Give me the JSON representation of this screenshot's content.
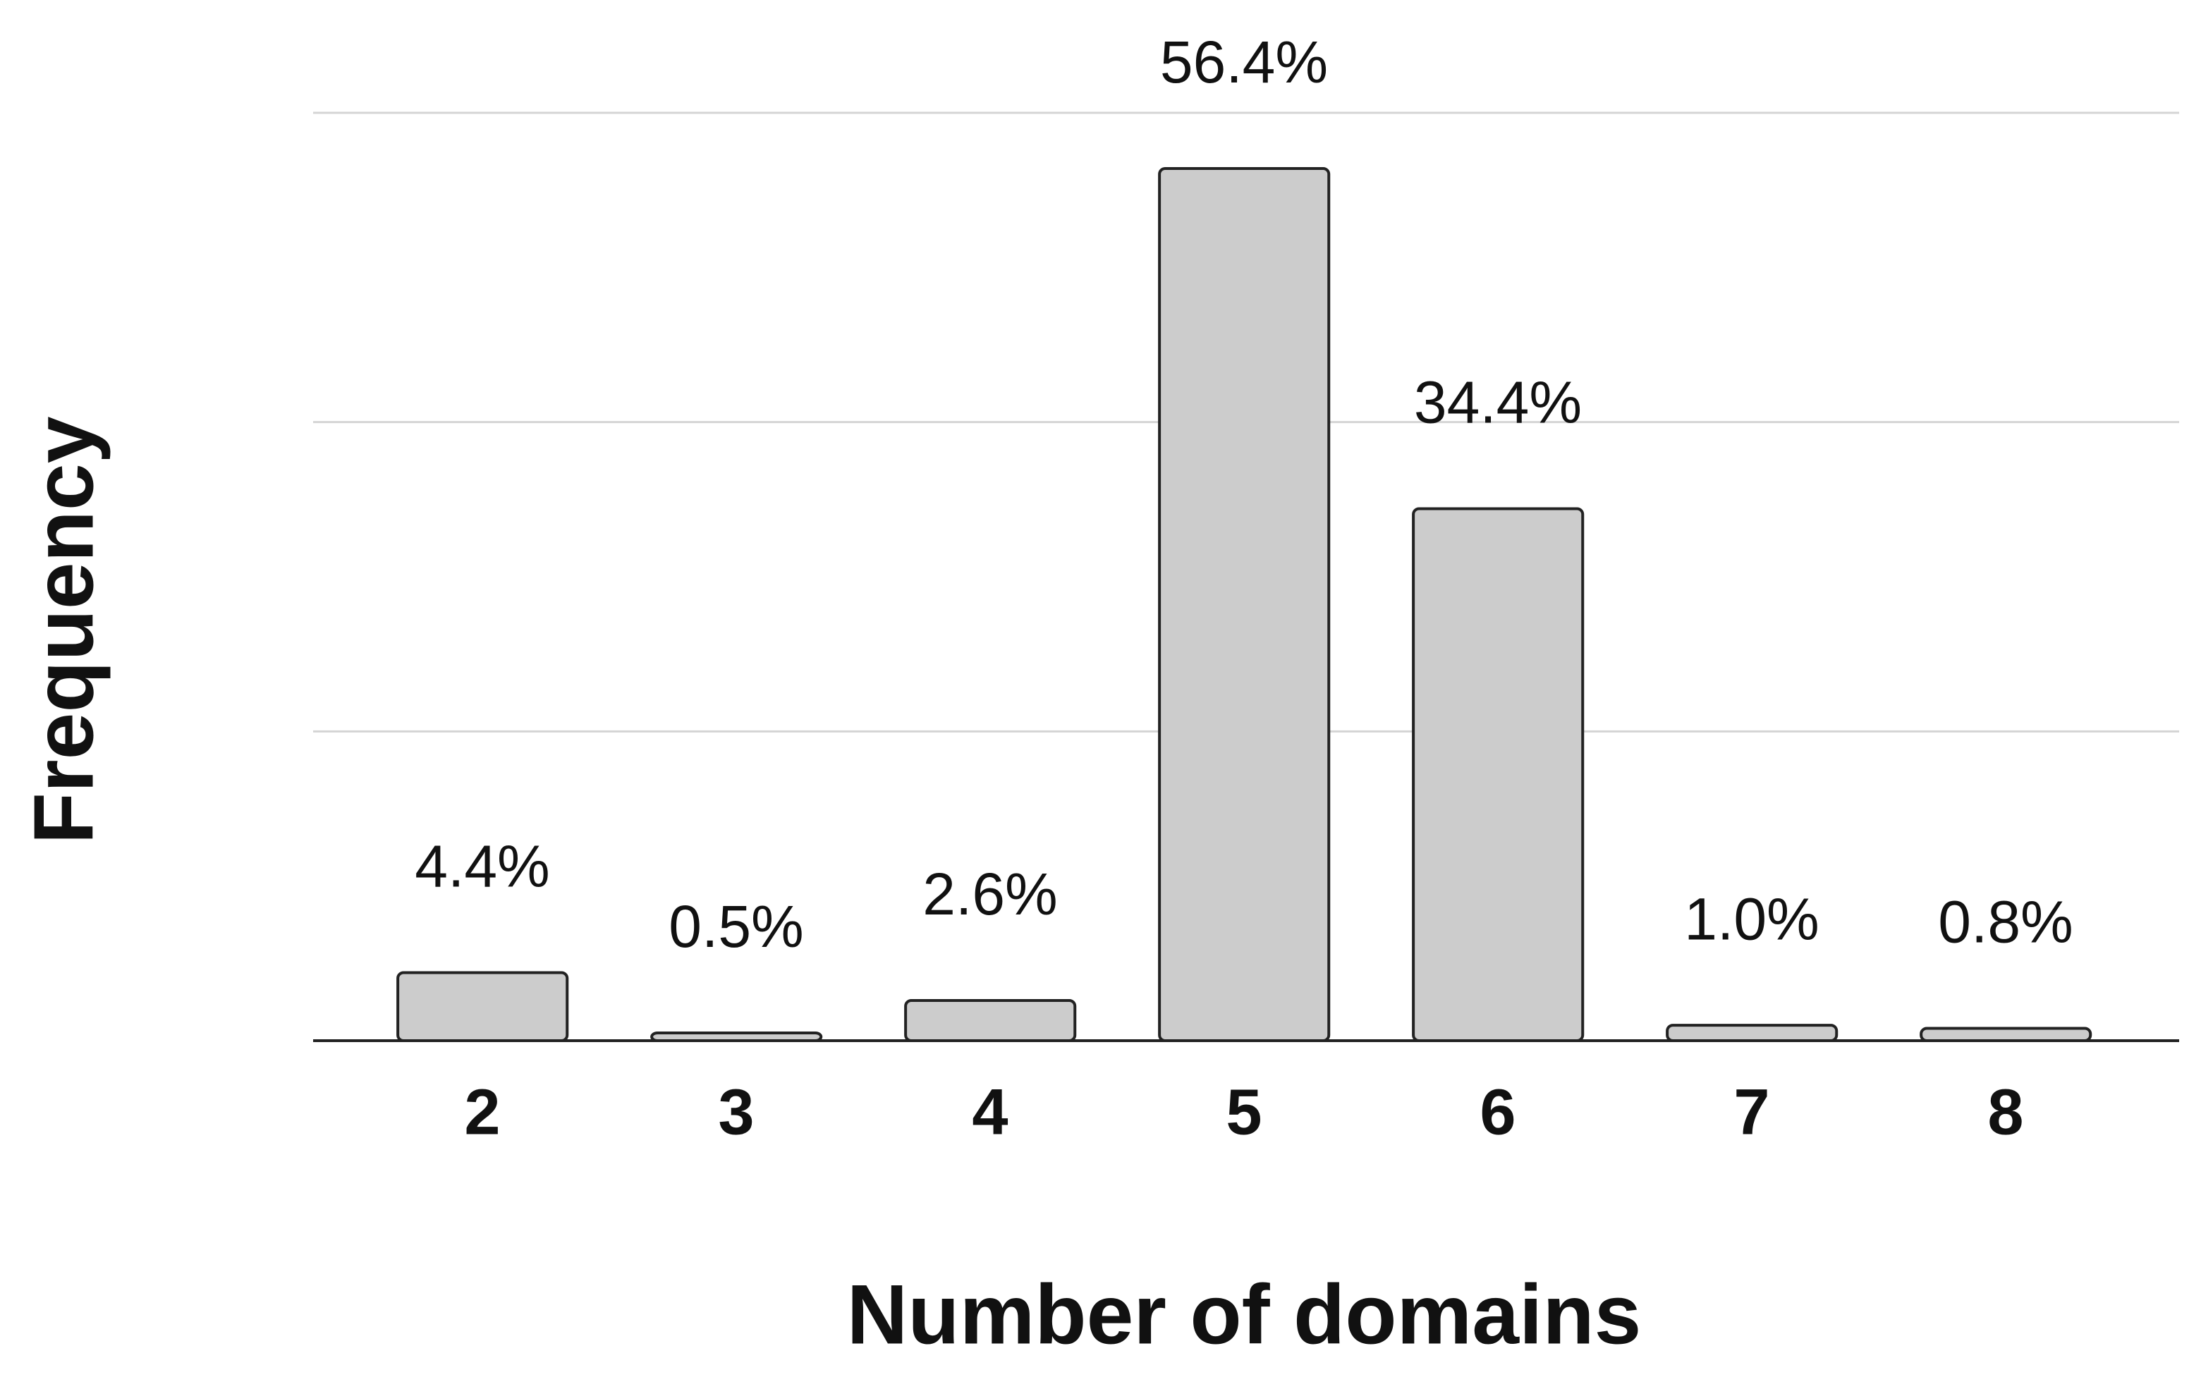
{
  "chart_data": {
    "type": "bar",
    "xlabel": "Number of domains",
    "ylabel": "Frequency",
    "categories": [
      "2",
      "3",
      "4",
      "5",
      "6",
      "7",
      "8"
    ],
    "values": [
      4.4,
      0.5,
      2.6,
      56.4,
      34.4,
      1.0,
      0.8
    ],
    "value_labels": [
      "4.4%",
      "0.5%",
      "2.6%",
      "56.4%",
      "34.4%",
      "1.0%",
      "0.8%"
    ],
    "color": "#cccccc",
    "edge_color": "#222222",
    "ylim": [
      0,
      60
    ],
    "yticks": [
      0,
      20,
      40,
      60
    ],
    "ytick_labels": false,
    "grid": true
  }
}
